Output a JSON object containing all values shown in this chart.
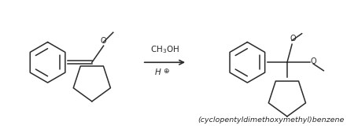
{
  "bg_color": "#ffffff",
  "text_color": "#2a2a2a",
  "arrow_label_top": "CH$_3$OH",
  "arrow_label_bottom": "H$^\\oplus$",
  "product_name": "(cyclopentyldimethoxymethyl)benzene",
  "figsize": [
    4.56,
    1.69
  ],
  "dpi": 100
}
